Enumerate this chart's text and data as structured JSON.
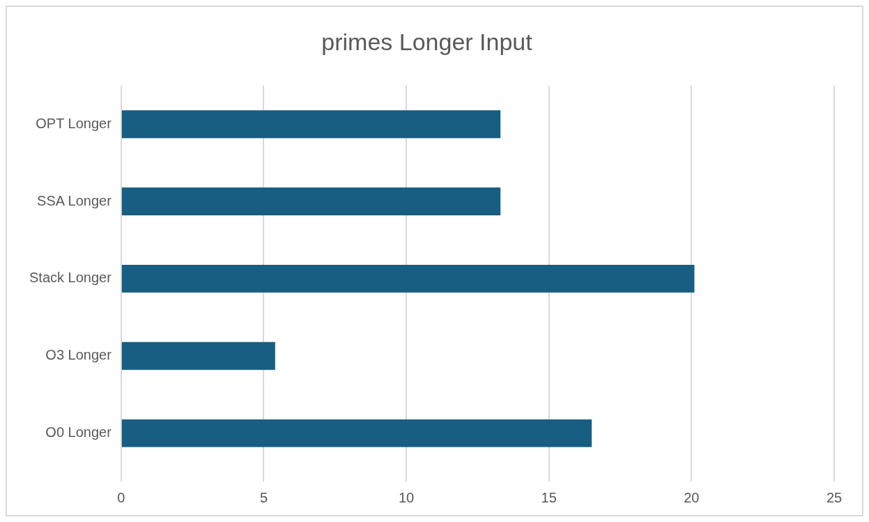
{
  "chart_data": {
    "type": "bar",
    "orientation": "horizontal",
    "title": "primes Longer Input",
    "categories": [
      "OPT Longer",
      "SSA Longer",
      "Stack Longer",
      "O3 Longer",
      "O0 Longer"
    ],
    "values": [
      13.3,
      13.3,
      20.1,
      5.4,
      16.5
    ],
    "color": "#175e82",
    "xlim": [
      0,
      25
    ],
    "xticks": [
      0,
      5,
      10,
      15,
      20,
      25
    ],
    "grid": "x",
    "legend": false
  }
}
